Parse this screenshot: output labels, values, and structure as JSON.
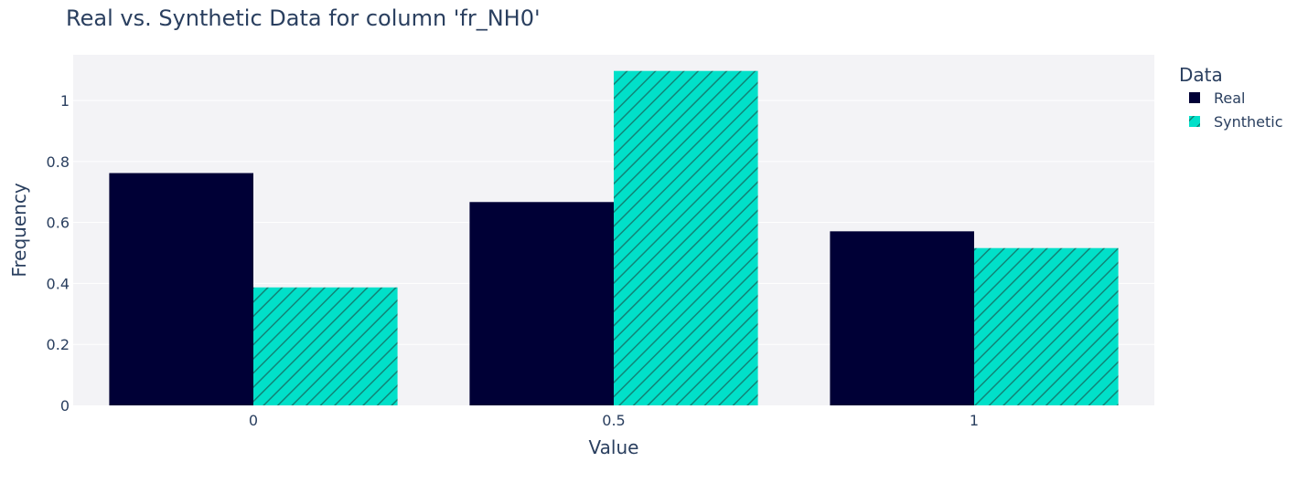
{
  "chart_data": {
    "type": "bar",
    "title": "Real vs. Synthetic Data for column 'fr_NH0'",
    "xlabel": "Value",
    "ylabel": "Frequency",
    "categories": [
      "0",
      "0.5",
      "1"
    ],
    "y_ticks": [
      "0",
      "0.2",
      "0.4",
      "0.6",
      "0.8",
      "1"
    ],
    "ylim": [
      0,
      1.15
    ],
    "grid": true,
    "legend": {
      "title": "Data",
      "placement": "right"
    },
    "series": [
      {
        "name": "Real",
        "values": [
          0.762,
          0.667,
          0.571
        ],
        "color": "#000036",
        "pattern": "solid"
      },
      {
        "name": "Synthetic",
        "values": [
          0.387,
          1.097,
          0.516
        ],
        "color": "#01E0C9",
        "pattern": "diagonal-hatch"
      }
    ],
    "colors": {
      "plot_background": "#f3f3f6",
      "grid": "#ffffff",
      "text": "#2a3f5f",
      "hatch": "#118477"
    }
  }
}
